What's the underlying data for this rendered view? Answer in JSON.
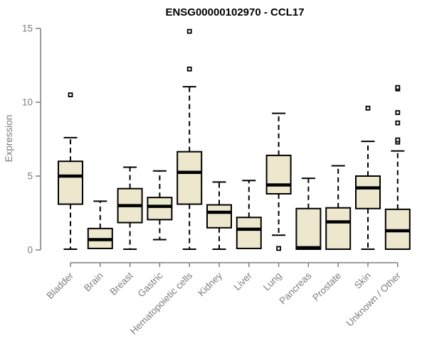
{
  "chart_data": {
    "type": "boxplot",
    "title": "ENSG00000102970 - CCL17",
    "ylabel": "Expression",
    "xlabel": "",
    "ylim": [
      0,
      15
    ],
    "yticks": [
      0,
      5,
      10,
      15
    ],
    "grid": false,
    "legend": "none",
    "categories": [
      "Bladder",
      "Brain",
      "Breast",
      "Gastric",
      "Hematopoietic cells",
      "Kidney",
      "Liver",
      "Lung",
      "Pancreas",
      "Prostate",
      "Skin",
      "Unknown / Other"
    ],
    "series": [
      {
        "category": "Bladder",
        "low": 0.05,
        "q1": 3.1,
        "median": 5.0,
        "q3": 6.0,
        "high": 7.6,
        "outliers": [
          10.5
        ]
      },
      {
        "category": "Brain",
        "low": 0.1,
        "q1": 0.1,
        "median": 0.7,
        "q3": 1.45,
        "high": 3.3,
        "outliers": []
      },
      {
        "category": "Breast",
        "low": 0.05,
        "q1": 1.85,
        "median": 3.0,
        "q3": 4.15,
        "high": 5.6,
        "outliers": []
      },
      {
        "category": "Gastric",
        "low": 0.7,
        "q1": 2.05,
        "median": 2.95,
        "q3": 3.55,
        "high": 5.35,
        "outliers": []
      },
      {
        "category": "Hematopoietic cells",
        "low": 0.05,
        "q1": 3.1,
        "median": 5.25,
        "q3": 6.65,
        "high": 11.05,
        "outliers": [
          12.25,
          14.8
        ]
      },
      {
        "category": "Kidney",
        "low": 0.05,
        "q1": 1.5,
        "median": 2.55,
        "q3": 3.05,
        "high": 4.6,
        "outliers": []
      },
      {
        "category": "Liver",
        "low": 0.1,
        "q1": 0.1,
        "median": 1.4,
        "q3": 2.2,
        "high": 4.7,
        "outliers": []
      },
      {
        "category": "Lung",
        "low": 1.0,
        "q1": 3.8,
        "median": 4.4,
        "q3": 6.4,
        "high": 9.25,
        "outliers": [
          0.1
        ]
      },
      {
        "category": "Pancreas",
        "low": 0.05,
        "q1": 0.05,
        "median": 0.15,
        "q3": 2.8,
        "high": 4.85,
        "outliers": []
      },
      {
        "category": "Prostate",
        "low": 0.05,
        "q1": 0.05,
        "median": 1.9,
        "q3": 2.85,
        "high": 5.7,
        "outliers": []
      },
      {
        "category": "Skin",
        "low": 0.05,
        "q1": 2.8,
        "median": 4.2,
        "q3": 5.0,
        "high": 7.35,
        "outliers": [
          9.6
        ]
      },
      {
        "category": "Unknown / Other",
        "low": 0.05,
        "q1": 0.05,
        "median": 1.3,
        "q3": 2.75,
        "high": 6.7,
        "outliers": [
          7.3,
          7.45,
          8.6,
          9.3,
          10.9,
          11.0
        ]
      }
    ],
    "colors": {
      "box_fill": "#EDE7CD",
      "box_stroke": "#000000",
      "median": "#000000",
      "whisker": "#000000",
      "outlier": "#000000",
      "axis": "#7d7d7d",
      "tick_text": "#7d7d7d",
      "title_text": "#000000",
      "background": "#ffffff"
    }
  }
}
